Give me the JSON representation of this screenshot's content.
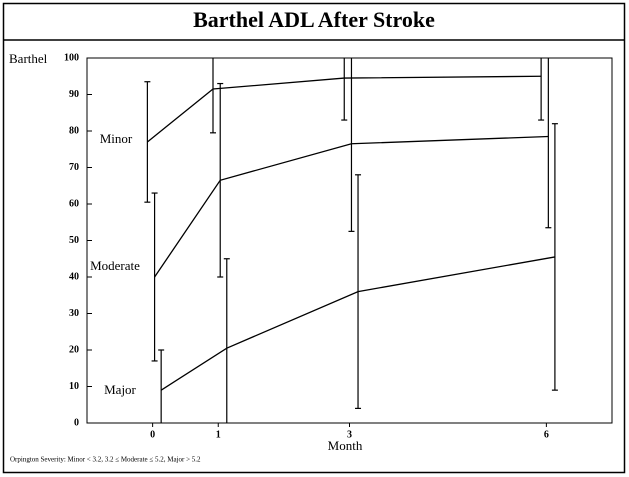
{
  "chart_data": {
    "type": "line",
    "title": "Barthel ADL After Stroke",
    "y_label": "Barthel",
    "x_label": "Month",
    "footnote": "Orpington Severity: Minor < 3.2, 3.2 ≤ Moderate ≤ 5.2, Major > 5.2",
    "xlim": [
      -1,
      7
    ],
    "xticks": [
      0,
      1,
      3,
      6
    ],
    "ylim": [
      0,
      100
    ],
    "yticks": [
      0,
      10,
      20,
      30,
      40,
      50,
      60,
      70,
      80,
      90,
      100
    ],
    "series": [
      {
        "name": "Minor",
        "color": "#000000",
        "x": [
          -0.08,
          0.92,
          2.92,
          5.92
        ],
        "values": [
          77,
          91.5,
          94.5,
          95
        ],
        "errors": [
          16.5,
          12,
          11.5,
          12
        ]
      },
      {
        "name": "Moderate",
        "color": "#000000",
        "x": [
          0.03,
          1.03,
          3.03,
          6.03
        ],
        "values": [
          40,
          66.5,
          76.5,
          78.5
        ],
        "errors": [
          23,
          26.5,
          24,
          25
        ]
      },
      {
        "name": "Major",
        "color": "#000000",
        "x": [
          0.13,
          1.13,
          3.13,
          6.13
        ],
        "values": [
          9,
          20.5,
          36,
          45.5
        ],
        "errors": [
          11,
          24.5,
          32,
          36.5
        ]
      }
    ]
  }
}
